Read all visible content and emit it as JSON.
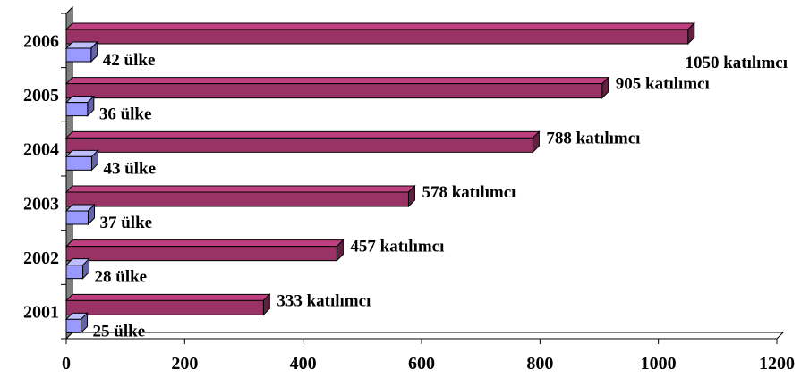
{
  "chart_data": {
    "type": "bar",
    "orientation": "horizontal",
    "three_d": true,
    "categories": [
      "2001",
      "2002",
      "2003",
      "2004",
      "2005",
      "2006"
    ],
    "series": [
      {
        "key": "participants",
        "values": [
          333,
          457,
          578,
          788,
          905,
          1050
        ],
        "labels": [
          "333 katılımcı",
          "457 katılımcı",
          "578 katılımcı",
          "788 katılımcı",
          "905 katılımcı",
          "1050 katılımcı"
        ],
        "color": "#993366"
      },
      {
        "key": "countries",
        "values": [
          25,
          28,
          37,
          43,
          36,
          42
        ],
        "labels": [
          "25 ülke",
          "28 ülke",
          "37 ülke",
          "43 ülke",
          "36 ülke",
          "42 ülke"
        ],
        "color": "#9999ff"
      }
    ],
    "x_ticks": [
      "0",
      "200",
      "400",
      "600",
      "800",
      "1000",
      "1200"
    ],
    "xlim": [
      0,
      1200
    ],
    "title": "",
    "xlabel": "",
    "ylabel": "",
    "grid": false,
    "legend": "none",
    "wall_color": "#808080"
  }
}
